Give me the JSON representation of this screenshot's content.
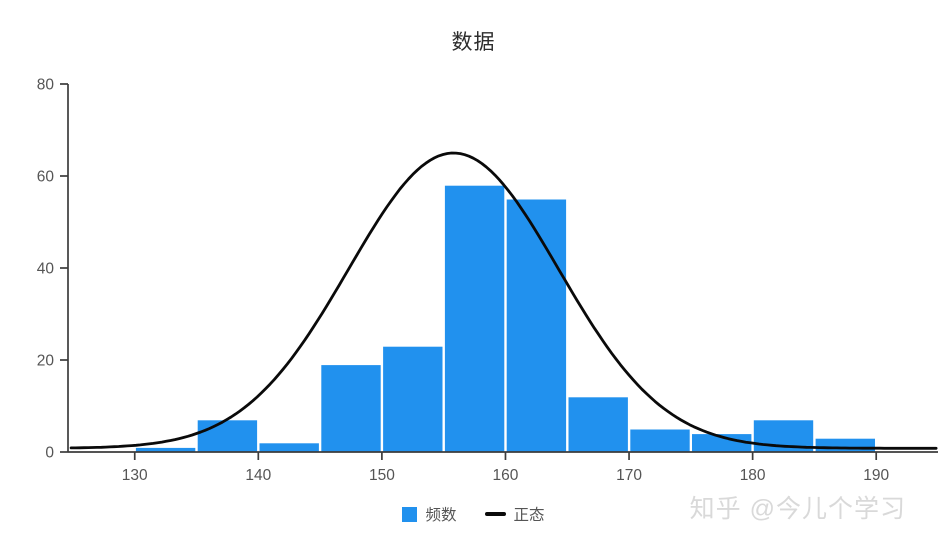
{
  "title": "数据",
  "watermark": "知乎 @今儿个学习",
  "colors": {
    "bar": "#2191ee",
    "curve": "#0a0a0a",
    "axis": "#3c3c3c",
    "tick_label": "#555555",
    "title": "#2d2d2d",
    "watermark": "#d9d9d9",
    "background": "#ffffff"
  },
  "legend": {
    "items": [
      {
        "label": "频数",
        "swatch": "square",
        "color": "#2191ee"
      },
      {
        "label": "正态",
        "swatch": "line",
        "color": "#0a0a0a"
      }
    ]
  },
  "chart_data": {
    "type": "bar",
    "subtype": "histogram-with-normal-curve",
    "title": "数据",
    "xlabel": "",
    "ylabel": "",
    "xlim": [
      124.6,
      195.0
    ],
    "ylim": [
      0,
      80
    ],
    "x_ticks": [
      130,
      140,
      150,
      160,
      170,
      180,
      190
    ],
    "y_ticks": [
      0,
      20,
      40,
      60,
      80
    ],
    "grid": false,
    "legend_position": "bottom",
    "bin_width": 5,
    "bin_edges": [
      130,
      135,
      140,
      145,
      150,
      155,
      160,
      165,
      170,
      175,
      180,
      185,
      190
    ],
    "series": [
      {
        "name": "频数",
        "type": "bar",
        "values": [
          1,
          7,
          2,
          19,
          23,
          58,
          55,
          12,
          5,
          4,
          7,
          3
        ]
      },
      {
        "name": "正态",
        "type": "line",
        "model": "gaussian",
        "mean": 155.8,
        "sigma": 8.5,
        "peak": 65,
        "baseline": 0.8
      }
    ]
  }
}
